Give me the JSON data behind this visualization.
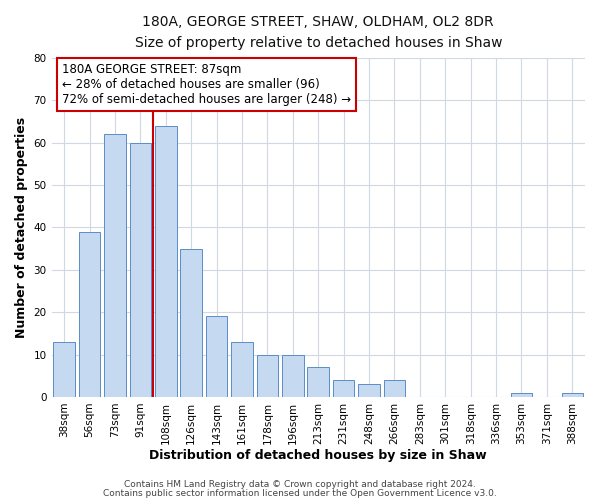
{
  "title1": "180A, GEORGE STREET, SHAW, OLDHAM, OL2 8DR",
  "title2": "Size of property relative to detached houses in Shaw",
  "xlabel": "Distribution of detached houses by size in Shaw",
  "ylabel": "Number of detached properties",
  "categories": [
    "38sqm",
    "56sqm",
    "73sqm",
    "91sqm",
    "108sqm",
    "126sqm",
    "143sqm",
    "161sqm",
    "178sqm",
    "196sqm",
    "213sqm",
    "231sqm",
    "248sqm",
    "266sqm",
    "283sqm",
    "301sqm",
    "318sqm",
    "336sqm",
    "353sqm",
    "371sqm",
    "388sqm"
  ],
  "values": [
    13,
    39,
    62,
    60,
    64,
    35,
    19,
    13,
    10,
    10,
    7,
    4,
    3,
    4,
    0,
    0,
    0,
    0,
    1,
    0,
    1
  ],
  "bar_color": "#c5d9f0",
  "bar_edge_color": "#5b8dc8",
  "ylim": [
    0,
    80
  ],
  "yticks": [
    0,
    10,
    20,
    30,
    40,
    50,
    60,
    70,
    80
  ],
  "property_line_x": 3.5,
  "property_line_color": "#cc0000",
  "annotation_line1": "180A GEORGE STREET: 87sqm",
  "annotation_line2": "← 28% of detached houses are smaller (96)",
  "annotation_line3": "72% of semi-detached houses are larger (248) →",
  "annotation_box_color": "#ffffff",
  "annotation_box_edge_color": "#cc0000",
  "footer1": "Contains HM Land Registry data © Crown copyright and database right 2024.",
  "footer2": "Contains public sector information licensed under the Open Government Licence v3.0.",
  "background_color": "#ffffff",
  "plot_bg_color": "#ffffff",
  "grid_color": "#d0d8e4",
  "title_fontsize": 10,
  "subtitle_fontsize": 9,
  "axis_label_fontsize": 9,
  "tick_fontsize": 7.5,
  "annotation_fontsize": 8.5,
  "footer_fontsize": 6.5
}
